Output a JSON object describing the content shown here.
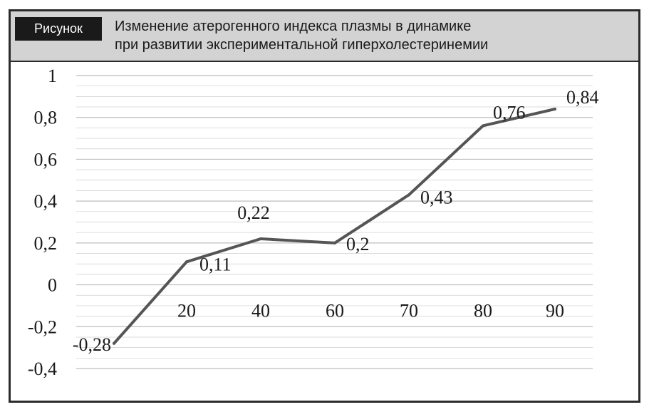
{
  "header": {
    "badge": "Рисунок",
    "title_line1": "Изменение атерогенного индекса плазмы в динамике",
    "title_line2": "при развитии экспериментальной гиперхолестеринемии"
  },
  "colors": {
    "line": "#555555",
    "header_bg": "#d3d3d3",
    "badge_bg": "#1a1a1a",
    "grid": "#cfcfcf"
  },
  "chart_data": {
    "type": "line",
    "title": "",
    "xlabel": "",
    "ylabel": "",
    "categories": [
      "",
      "20",
      "40",
      "60",
      "70",
      "80",
      "90"
    ],
    "values": [
      -0.28,
      0.11,
      0.22,
      0.2,
      0.43,
      0.76,
      0.84
    ],
    "data_labels": [
      "-0,28",
      "0,11",
      "0,22",
      "0,2",
      "0,43",
      "0,76",
      "0,84"
    ],
    "ylim": [
      -0.4,
      1
    ],
    "yticks": [
      "-0,4",
      "-0,2",
      "0",
      "0,2",
      "0,4",
      "0,6",
      "0,8",
      "1"
    ],
    "grid": true,
    "legend": "none"
  }
}
